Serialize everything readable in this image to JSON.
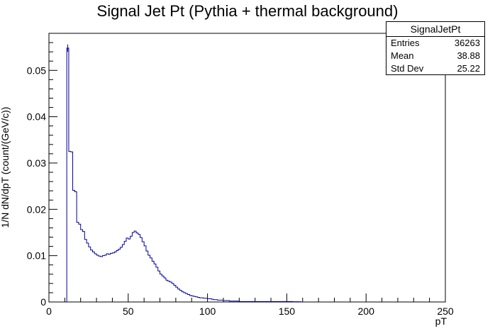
{
  "chart_data": {
    "type": "histogram",
    "title": "Signal Jet Pt (Pythia + thermal background)",
    "xlabel": "pT",
    "ylabel": "1/N dN/dpT (count/(GeV/c))",
    "xlim": [
      0,
      250
    ],
    "ylim": [
      0,
      0.058
    ],
    "x_ticks": [
      0,
      50,
      100,
      150,
      200,
      250
    ],
    "y_ticks": [
      0,
      0.01,
      0.02,
      0.03,
      0.04,
      0.05
    ],
    "y_tick_labels": [
      "0",
      "0.01",
      "0.02",
      "0.03",
      "0.04",
      "0.05"
    ],
    "grid": false,
    "line_color": "#000099",
    "bin_width": 1.25,
    "bin_start": 11.25,
    "values": [
      0.0548,
      0.0325,
      0.0324,
      0.0241,
      0.0238,
      0.0172,
      0.0168,
      0.0156,
      0.0152,
      0.0135,
      0.0127,
      0.0119,
      0.0112,
      0.0108,
      0.0104,
      0.0101,
      0.0099,
      0.0098,
      0.01,
      0.0101,
      0.0104,
      0.0103,
      0.0105,
      0.0106,
      0.0108,
      0.0111,
      0.0114,
      0.0118,
      0.0124,
      0.0131,
      0.0138,
      0.0136,
      0.0142,
      0.015,
      0.0153,
      0.0149,
      0.0146,
      0.0139,
      0.013,
      0.0121,
      0.011,
      0.0101,
      0.0095,
      0.0088,
      0.0082,
      0.0075,
      0.0067,
      0.006,
      0.0056,
      0.0052,
      0.0047,
      0.0045,
      0.0043,
      0.004,
      0.0036,
      0.0032,
      0.0028,
      0.0025,
      0.0022,
      0.002,
      0.0018,
      0.0016,
      0.0014,
      0.0013,
      0.0012,
      0.0011,
      0.001,
      0.0009,
      0.0009,
      0.0008,
      0.0008,
      0.0007,
      0.0007,
      0.0006,
      0.0005,
      0.0005,
      0.0004,
      0.0004,
      0.0004,
      0.0003,
      0.0003,
      0.0003,
      0.0002,
      0.0002,
      0.0002,
      0.0002,
      0.0002,
      0.0001,
      0.0001,
      0.0001,
      0.0001,
      0.0001,
      0.0001,
      0.0001,
      0.0001,
      0.0001,
      0.0001,
      0.0001,
      0.0001,
      0.0001,
      0.0001,
      0.0001,
      0.0001,
      0.0001,
      0.0001,
      0.0001,
      0.0001,
      0.0001,
      0.0001,
      0.0001,
      0.0001,
      0.0001,
      0.0001,
      0.0001,
      5e-05,
      5e-05,
      5e-05,
      5e-05
    ],
    "legend": "top-right"
  },
  "stats_box": {
    "name": "SignalJetPt",
    "entries_label": "Entries",
    "entries": "36263",
    "mean_label": "Mean",
    "mean": "38.88",
    "stddev_label": "Std Dev",
    "stddev": "25.22"
  }
}
